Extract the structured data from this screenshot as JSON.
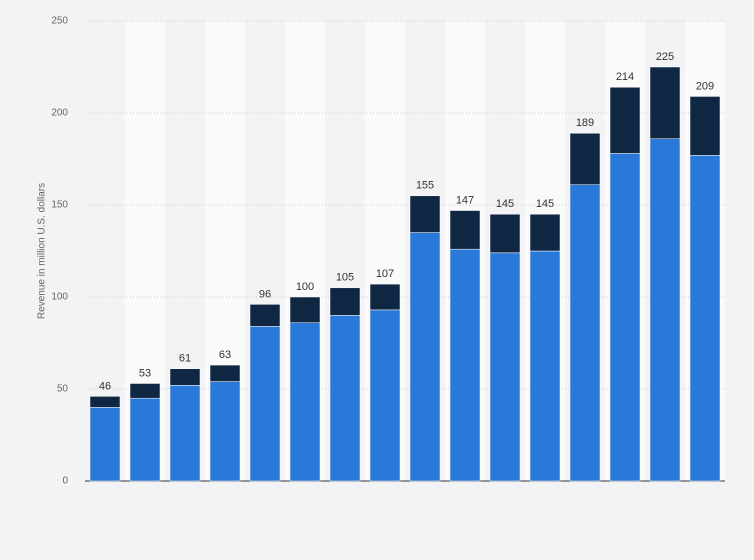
{
  "chart_data": {
    "type": "stacked-bar",
    "y_label": "Revenue in million U.S. dollars",
    "categories": [
      null,
      null,
      null,
      null,
      null,
      null,
      null,
      null,
      null,
      null,
      null,
      null,
      null,
      null,
      null,
      null
    ],
    "series": [
      {
        "color": "#2a78d8",
        "values": [
          40,
          45,
          52,
          54,
          84,
          86,
          90,
          93,
          135,
          126,
          124,
          125,
          161,
          178,
          186,
          177
        ]
      },
      {
        "color": "#0f2742",
        "values": [
          6,
          8,
          9,
          9,
          12,
          14,
          15,
          14,
          20,
          21,
          21,
          20,
          28,
          36,
          39,
          32
        ]
      }
    ],
    "totals": [
      46,
      53,
      61,
      63,
      96,
      100,
      105,
      107,
      155,
      147,
      145,
      145,
      189,
      214,
      225,
      209
    ],
    "ylim": [
      0,
      250
    ],
    "yticks": [
      0,
      50,
      100,
      150,
      200,
      250
    ],
    "grid": true
  }
}
